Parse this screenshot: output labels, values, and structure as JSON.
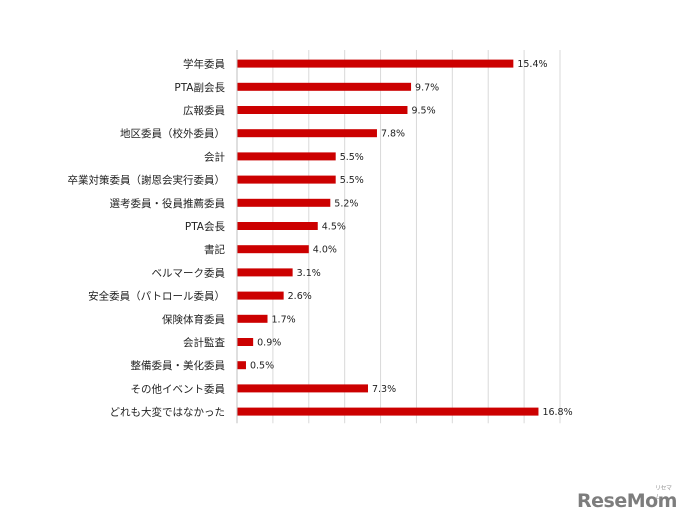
{
  "chart_data": {
    "type": "bar",
    "orientation": "horizontal",
    "title": "",
    "xlabel": "",
    "ylabel": "",
    "xlim": [
      0,
      18
    ],
    "grid": true,
    "bar_color": "#cc0000",
    "categories": [
      "学年委員",
      "PTA副会長",
      "広報委員",
      "地区委員（校外委員）",
      "会計",
      "卒業対策委員（謝恩会実行委員）",
      "選考委員・役員推薦委員",
      "PTA会長",
      "書記",
      "ベルマーク委員",
      "安全委員（パトロール委員）",
      "保険体育委員",
      "会計監査",
      "整備委員・美化委員",
      "その他イベント委員",
      "どれも大変ではなかった"
    ],
    "values": [
      15.4,
      9.7,
      9.5,
      7.8,
      5.5,
      5.5,
      5.2,
      4.5,
      4.0,
      3.1,
      2.6,
      1.7,
      0.9,
      0.5,
      7.3,
      16.8
    ],
    "value_labels": [
      "15.4%",
      "9.7%",
      "9.5%",
      "7.8%",
      "5.5%",
      "5.5%",
      "5.2%",
      "4.5%",
      "4.0%",
      "3.1%",
      "2.6%",
      "1.7%",
      "0.9%",
      "0.5%",
      "7.3%",
      "16.8%"
    ]
  },
  "logo": {
    "text": "ReseMom",
    "tag": "リセマム"
  }
}
